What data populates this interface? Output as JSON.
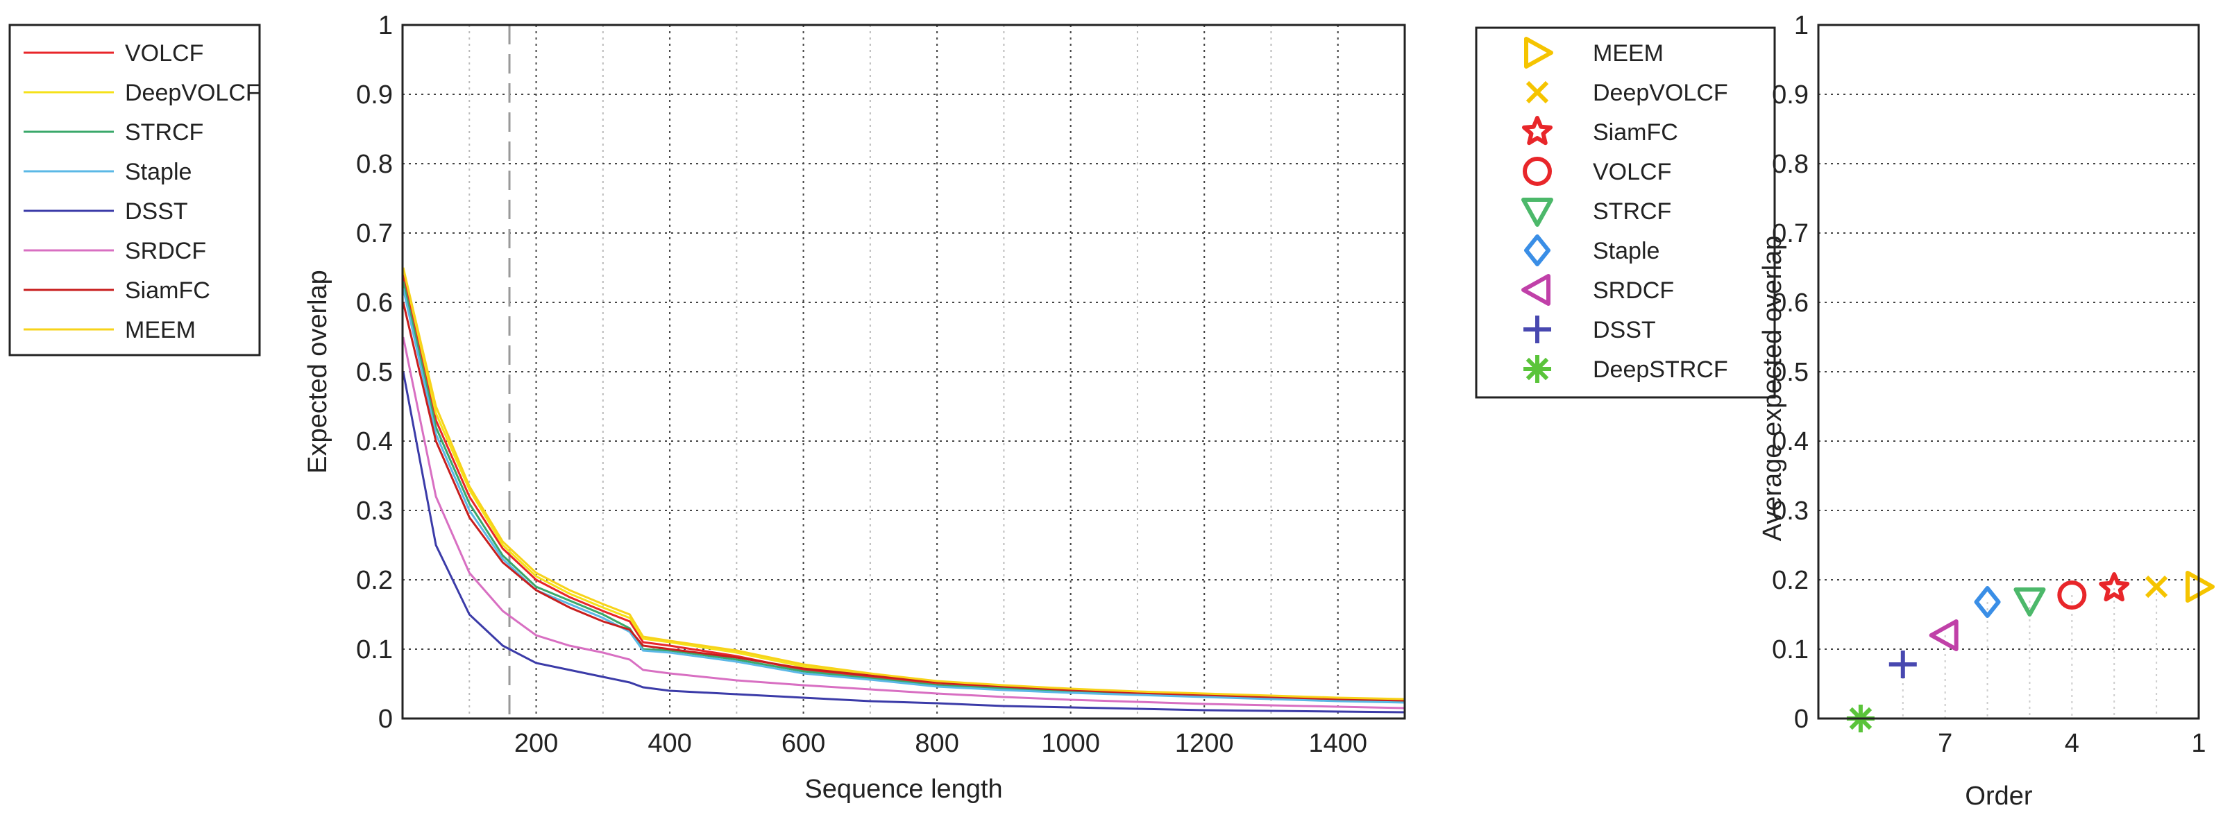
{
  "chart_data": [
    {
      "type": "line",
      "xlabel": "Sequence length",
      "ylabel": "Expected overlap",
      "xlim": [
        0,
        1500
      ],
      "ylim": [
        0,
        1
      ],
      "xticks": [
        "200",
        "400",
        "600",
        "800",
        "1000",
        "1200",
        "1400"
      ],
      "yticks": [
        "0",
        "0.1",
        "0.2",
        "0.3",
        "0.4",
        "0.5",
        "0.6",
        "0.7",
        "0.8",
        "0.9",
        "1"
      ],
      "grid": true,
      "legend_position": "outside-left",
      "x": [
        1,
        50,
        100,
        150,
        200,
        250,
        300,
        340,
        360,
        400,
        500,
        600,
        700,
        800,
        900,
        1000,
        1100,
        1200,
        1300,
        1400,
        1500
      ],
      "series": [
        {
          "name": "VOLCF",
          "color": "#e8262a",
          "values": [
            0.64,
            0.43,
            0.32,
            0.245,
            0.2,
            0.175,
            0.155,
            0.14,
            0.11,
            0.105,
            0.09,
            0.07,
            0.06,
            0.05,
            0.045,
            0.04,
            0.037,
            0.033,
            0.031,
            0.028,
            0.026
          ]
        },
        {
          "name": "DeepVOLCF",
          "color": "#f5e11a",
          "values": [
            0.65,
            0.44,
            0.33,
            0.25,
            0.205,
            0.18,
            0.16,
            0.145,
            0.115,
            0.11,
            0.095,
            0.075,
            0.063,
            0.052,
            0.047,
            0.042,
            0.038,
            0.035,
            0.032,
            0.029,
            0.027
          ]
        },
        {
          "name": "STRCF",
          "color": "#3aa86a",
          "values": [
            0.63,
            0.42,
            0.31,
            0.235,
            0.19,
            0.17,
            0.15,
            0.13,
            0.1,
            0.098,
            0.085,
            0.068,
            0.058,
            0.048,
            0.043,
            0.038,
            0.035,
            0.032,
            0.029,
            0.026,
            0.024
          ]
        },
        {
          "name": "Staple",
          "color": "#5bb8e6",
          "values": [
            0.62,
            0.41,
            0.3,
            0.23,
            0.185,
            0.165,
            0.145,
            0.125,
            0.098,
            0.095,
            0.082,
            0.065,
            0.056,
            0.046,
            0.041,
            0.037,
            0.034,
            0.031,
            0.028,
            0.025,
            0.023
          ]
        },
        {
          "name": "DSST",
          "color": "#3b3ba8",
          "values": [
            0.5,
            0.25,
            0.15,
            0.105,
            0.08,
            0.07,
            0.06,
            0.052,
            0.045,
            0.04,
            0.035,
            0.03,
            0.025,
            0.022,
            0.018,
            0.016,
            0.014,
            0.012,
            0.011,
            0.01,
            0.009
          ]
        },
        {
          "name": "SRDCF",
          "color": "#d86fc2",
          "values": [
            0.55,
            0.32,
            0.21,
            0.155,
            0.12,
            0.105,
            0.095,
            0.085,
            0.07,
            0.065,
            0.055,
            0.048,
            0.042,
            0.036,
            0.031,
            0.027,
            0.024,
            0.021,
            0.019,
            0.017,
            0.015
          ]
        },
        {
          "name": "SiamFC",
          "color": "#c81e1e",
          "values": [
            0.6,
            0.4,
            0.29,
            0.225,
            0.185,
            0.16,
            0.14,
            0.128,
            0.105,
            0.1,
            0.088,
            0.072,
            0.062,
            0.052,
            0.046,
            0.041,
            0.037,
            0.034,
            0.031,
            0.028,
            0.026
          ]
        },
        {
          "name": "MEEM",
          "color": "#f7d31a",
          "values": [
            0.65,
            0.45,
            0.335,
            0.255,
            0.21,
            0.185,
            0.165,
            0.15,
            0.118,
            0.112,
            0.098,
            0.078,
            0.065,
            0.054,
            0.048,
            0.043,
            0.039,
            0.036,
            0.033,
            0.03,
            0.028
          ]
        }
      ],
      "vline_x": 160
    },
    {
      "type": "scatter",
      "xlabel": "Order",
      "ylabel": "Average expected overlap",
      "xlim": [
        10,
        1
      ],
      "ylim": [
        0,
        1
      ],
      "xticks": [
        "7",
        "4",
        "1"
      ],
      "yticks": [
        "0",
        "0.1",
        "0.2",
        "0.3",
        "0.4",
        "0.5",
        "0.6",
        "0.7",
        "0.8",
        "0.9",
        "1"
      ],
      "grid": true,
      "legend_position": "outside-left",
      "points": [
        {
          "name": "MEEM",
          "order": 1,
          "value": 0.19,
          "marker": "triangle-right",
          "color": "#f5c400"
        },
        {
          "name": "DeepVOLCF",
          "order": 2,
          "value": 0.19,
          "marker": "x",
          "color": "#f5c400"
        },
        {
          "name": "SiamFC",
          "order": 3,
          "value": 0.188,
          "marker": "star",
          "color": "#e8262a"
        },
        {
          "name": "VOLCF",
          "order": 4,
          "value": 0.178,
          "marker": "circle",
          "color": "#e8262a"
        },
        {
          "name": "STRCF",
          "order": 5,
          "value": 0.17,
          "marker": "triangle-down",
          "color": "#4cb86a"
        },
        {
          "name": "Staple",
          "order": 6,
          "value": 0.168,
          "marker": "diamond",
          "color": "#3a8ee6"
        },
        {
          "name": "SRDCF",
          "order": 7,
          "value": 0.12,
          "marker": "triangle-left",
          "color": "#c040a8"
        },
        {
          "name": "DSST",
          "order": 8,
          "value": 0.078,
          "marker": "plus",
          "color": "#4848b0"
        },
        {
          "name": "DeepSTRCF",
          "order": 9,
          "value": 0.0,
          "marker": "asterisk",
          "color": "#5ac43a"
        }
      ]
    }
  ]
}
